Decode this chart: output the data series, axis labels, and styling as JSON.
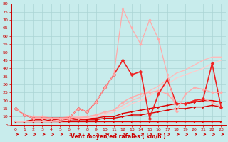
{
  "background_color": "#c8ecec",
  "grid_color": "#aad4d4",
  "xlabel": "Vent moyen/en rafales ( km/h )",
  "xlim": [
    -0.5,
    23.5
  ],
  "ylim": [
    5,
    80
  ],
  "yticks": [
    5,
    10,
    15,
    20,
    25,
    30,
    35,
    40,
    45,
    50,
    55,
    60,
    65,
    70,
    75,
    80
  ],
  "xticks": [
    0,
    1,
    2,
    3,
    4,
    5,
    6,
    7,
    8,
    9,
    10,
    11,
    12,
    13,
    14,
    15,
    16,
    17,
    18,
    19,
    20,
    21,
    22,
    23
  ],
  "series": [
    {
      "x": [
        0,
        1,
        2,
        3,
        4,
        5,
        6,
        7,
        8,
        9,
        10,
        11,
        12,
        13,
        14,
        15,
        16,
        17,
        18,
        19,
        20,
        21,
        22,
        23
      ],
      "y": [
        7,
        7,
        7,
        7,
        7,
        7,
        7,
        7,
        7,
        7,
        7,
        7,
        7,
        7,
        7,
        7,
        7,
        7,
        7,
        7,
        7,
        7,
        7,
        7
      ],
      "color": "#dd0000",
      "lw": 1.0,
      "marker": ">",
      "ms": 2
    },
    {
      "x": [
        0,
        1,
        2,
        3,
        4,
        5,
        6,
        7,
        8,
        9,
        10,
        11,
        12,
        13,
        14,
        15,
        16,
        17,
        18,
        19,
        20,
        21,
        22,
        23
      ],
      "y": [
        7,
        7,
        7,
        7,
        8,
        8,
        8,
        8,
        8,
        8,
        9,
        9,
        10,
        11,
        11,
        12,
        13,
        14,
        15,
        15,
        16,
        16,
        17,
        16
      ],
      "color": "#dd0000",
      "lw": 1.0,
      "marker": ">",
      "ms": 2
    },
    {
      "x": [
        0,
        1,
        2,
        3,
        4,
        5,
        6,
        7,
        8,
        9,
        10,
        11,
        12,
        13,
        14,
        15,
        16,
        17,
        18,
        19,
        20,
        21,
        22,
        23
      ],
      "y": [
        7,
        7,
        8,
        8,
        9,
        9,
        9,
        9,
        9,
        9,
        10,
        10,
        12,
        13,
        14,
        15,
        16,
        17,
        18,
        18,
        19,
        20,
        20,
        19
      ],
      "color": "#dd0000",
      "lw": 1.0,
      "marker": ">",
      "ms": 2
    },
    {
      "x": [
        0,
        1,
        2,
        3,
        4,
        5,
        6,
        7,
        8,
        9,
        10,
        11,
        12,
        13,
        14,
        15,
        16,
        17,
        18,
        19,
        20,
        21,
        22,
        23
      ],
      "y": [
        7,
        7,
        7,
        7,
        7,
        8,
        9,
        10,
        10,
        11,
        12,
        14,
        17,
        20,
        22,
        26,
        29,
        33,
        37,
        39,
        42,
        45,
        47,
        47
      ],
      "color": "#ffbbbb",
      "lw": 1.0,
      "marker": null,
      "ms": 0
    },
    {
      "x": [
        0,
        1,
        2,
        3,
        4,
        5,
        6,
        7,
        8,
        9,
        10,
        11,
        12,
        13,
        14,
        15,
        16,
        17,
        18,
        19,
        20,
        21,
        22,
        23
      ],
      "y": [
        7,
        7,
        7,
        7,
        7,
        7,
        8,
        9,
        9,
        10,
        11,
        13,
        15,
        18,
        20,
        23,
        27,
        30,
        34,
        36,
        38,
        40,
        43,
        45
      ],
      "color": "#ffcccc",
      "lw": 1.0,
      "marker": null,
      "ms": 0
    },
    {
      "x": [
        0,
        1,
        2,
        3,
        4,
        5,
        6,
        7,
        8,
        9,
        10,
        11,
        12,
        13,
        14,
        15,
        16,
        17,
        18,
        19,
        20,
        21,
        22,
        23
      ],
      "y": [
        15,
        11,
        10,
        10,
        9,
        9,
        10,
        9,
        10,
        11,
        13,
        14,
        19,
        22,
        24,
        25,
        26,
        24,
        18,
        18,
        20,
        21,
        19,
        16
      ],
      "color": "#ffaaaa",
      "lw": 1.0,
      "marker": "D",
      "ms": 2
    },
    {
      "x": [
        0,
        1,
        2,
        3,
        4,
        5,
        6,
        7,
        8,
        9,
        10,
        11,
        12,
        13,
        14,
        15,
        16,
        17,
        18,
        19,
        20,
        21,
        22,
        23
      ],
      "y": [
        15,
        11,
        9,
        9,
        9,
        9,
        9,
        15,
        13,
        19,
        28,
        36,
        45,
        36,
        38,
        9,
        24,
        33,
        18,
        18,
        20,
        21,
        43,
        16
      ],
      "color": "#ee2222",
      "lw": 1.2,
      "marker": "D",
      "ms": 2.5
    },
    {
      "x": [
        0,
        1,
        2,
        3,
        4,
        5,
        6,
        7,
        8,
        9,
        10,
        11,
        12,
        13,
        14,
        15,
        16,
        17,
        18,
        19,
        20,
        21,
        22,
        23
      ],
      "y": [
        15,
        11,
        9,
        9,
        9,
        9,
        9,
        15,
        13,
        19,
        28,
        36,
        77,
        65,
        55,
        70,
        58,
        36,
        13,
        24,
        28,
        27,
        25,
        25
      ],
      "color": "#ffaaaa",
      "lw": 0.9,
      "marker": "D",
      "ms": 2
    }
  ]
}
